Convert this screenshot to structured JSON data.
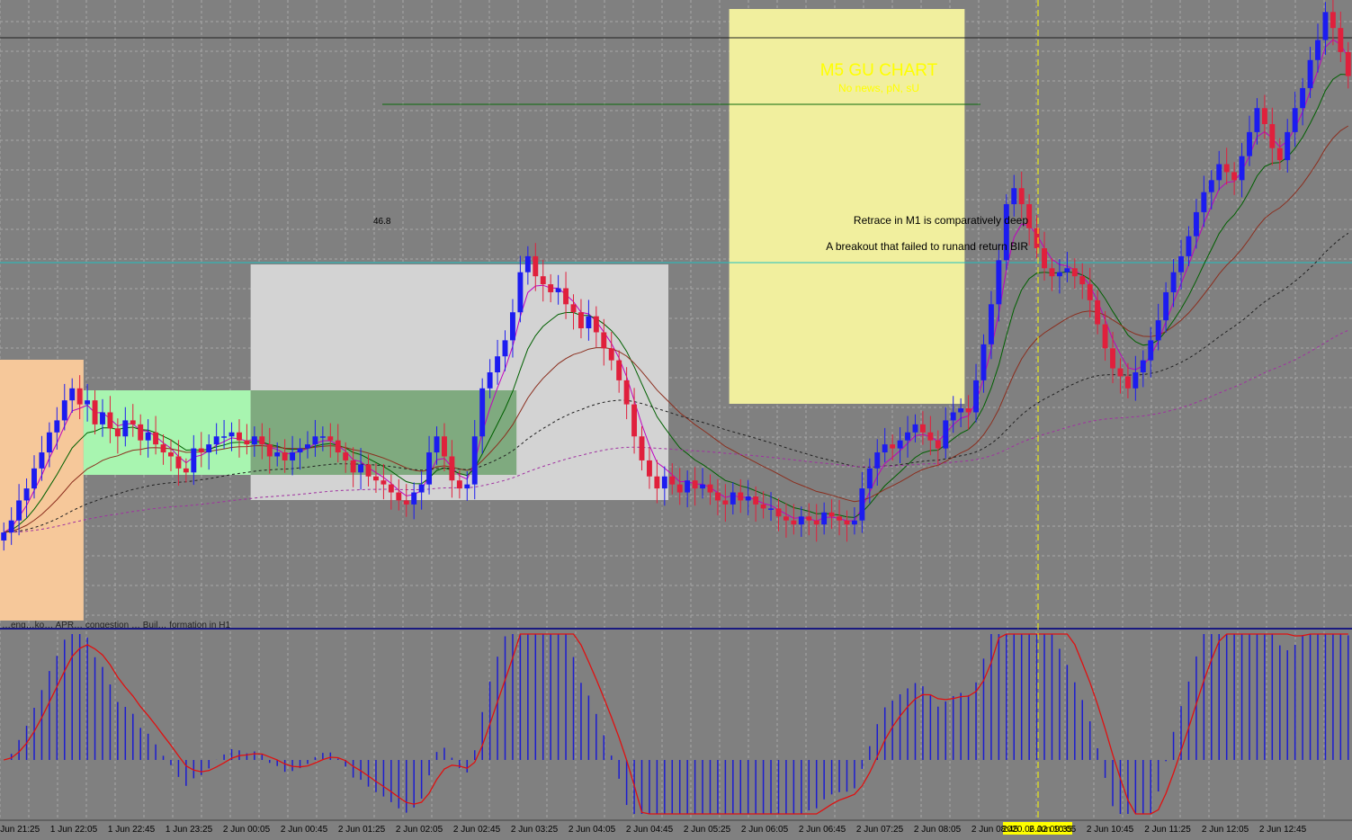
{
  "title": "M5 GU CHART",
  "subtitle": "No news, pN, sU",
  "annotations": {
    "level_label": "46.8",
    "note_1": "Retrace in M1 is comparatively deep",
    "note_2": "A breakout that failed to runand return BIR",
    "overlap_text": "…eng…ko… APR… congestion … Buil… formation in H1"
  },
  "crosshair_label": "2020.06.02 09:35",
  "colors": {
    "background": "#808080",
    "grid": "#a8a8a8",
    "bull_candle": "#1c1cf0",
    "bear_candle": "#e0203c",
    "title": "#ffff00",
    "crosshair": "#ffff00",
    "box_orange": "#f6c89a",
    "box_green": "#a8f5b0",
    "box_grey": "#d3d3d3",
    "box_darkgreen": "#7faa7f",
    "box_yellow": "#f1ef9e"
  },
  "chart_data": {
    "type": "candlestick",
    "timeframe": "M5",
    "x_tick_labels": [
      "1 Jun 21:25",
      "1 Jun 22:05",
      "1 Jun 22:45",
      "1 Jun 23:25",
      "2 Jun 00:05",
      "2 Jun 00:45",
      "2 Jun 01:25",
      "2 Jun 02:05",
      "2 Jun 02:45",
      "2 Jun 03:25",
      "2 Jun 04:05",
      "2 Jun 04:45",
      "2 Jun 05:25",
      "2 Jun 06:05",
      "2 Jun 06:45",
      "2 Jun 07:25",
      "2 Jun 08:05",
      "2 Jun 08:45",
      "2 Jun 10:05",
      "2 Jun 10:45",
      "2 Jun 11:25",
      "2 Jun 12:05",
      "2 Jun 12:45"
    ],
    "price_closes": [
      0.22,
      0.25,
      0.3,
      0.33,
      0.38,
      0.42,
      0.47,
      0.5,
      0.55,
      0.58,
      0.54,
      0.55,
      0.49,
      0.52,
      0.48,
      0.46,
      0.5,
      0.49,
      0.45,
      0.47,
      0.44,
      0.42,
      0.41,
      0.38,
      0.37,
      0.43,
      0.42,
      0.44,
      0.46,
      0.46,
      0.47,
      0.45,
      0.44,
      0.46,
      0.44,
      0.41,
      0.42,
      0.4,
      0.42,
      0.43,
      0.44,
      0.46,
      0.46,
      0.45,
      0.42,
      0.4,
      0.37,
      0.39,
      0.36,
      0.35,
      0.34,
      0.32,
      0.3,
      0.29,
      0.32,
      0.34,
      0.42,
      0.46,
      0.41,
      0.35,
      0.33,
      0.34,
      0.46,
      0.58,
      0.62,
      0.66,
      0.7,
      0.77,
      0.87,
      0.91,
      0.86,
      0.84,
      0.82,
      0.83,
      0.79,
      0.77,
      0.73,
      0.76,
      0.72,
      0.68,
      0.65,
      0.6,
      0.54,
      0.46,
      0.4,
      0.36,
      0.33,
      0.36,
      0.34,
      0.32,
      0.35,
      0.33,
      0.34,
      0.32,
      0.3,
      0.29,
      0.32,
      0.3,
      0.31,
      0.29,
      0.28,
      0.28,
      0.26,
      0.25,
      0.24,
      0.26,
      0.25,
      0.24,
      0.27,
      0.26,
      0.25,
      0.24,
      0.25,
      0.33,
      0.38,
      0.42,
      0.44,
      0.43,
      0.45,
      0.47,
      0.49,
      0.47,
      0.45,
      0.43,
      0.5,
      0.52,
      0.53,
      0.52,
      0.6,
      0.69,
      0.79,
      0.9,
      1.04,
      1.08,
      1.04,
      0.98,
      0.93,
      0.88,
      0.86,
      0.87,
      0.88,
      0.86,
      0.84,
      0.8,
      0.74,
      0.68,
      0.63,
      0.61,
      0.58,
      0.62,
      0.65,
      0.7,
      0.75,
      0.82,
      0.87,
      0.91,
      0.96,
      1.02,
      1.07,
      1.1,
      1.14,
      1.12,
      1.1,
      1.16,
      1.22,
      1.28,
      1.24,
      1.18,
      1.15,
      1.22,
      1.28,
      1.33,
      1.4,
      1.45,
      1.52,
      1.48,
      1.42,
      1.36
    ],
    "shaded_zones": [
      {
        "name": "orange-zone",
        "start_index": 0,
        "end_index": 10
      },
      {
        "name": "green-zone",
        "start_index": 11,
        "end_index": 32
      },
      {
        "name": "grey-zone",
        "start_index": 33,
        "end_index": 87
      },
      {
        "name": "darkgreen-zone",
        "start_index": 33,
        "end_index": 67
      },
      {
        "name": "yellow-zone",
        "start_index": 96,
        "end_index": 126
      }
    ],
    "moving_averages": [
      {
        "color": "#c000c0",
        "period": "fast"
      },
      {
        "color": "#006000",
        "period": "medium"
      },
      {
        "color": "#8b2e1e",
        "period": "slow"
      },
      {
        "color": "#202020",
        "period": "dotted-long"
      },
      {
        "color": "#a030a0",
        "period": "dotted-longer"
      }
    ],
    "oscillator": {
      "type": "histogram-with-signal",
      "histogram_color": "#1c1cd0",
      "signal_color": "#e01010"
    }
  }
}
